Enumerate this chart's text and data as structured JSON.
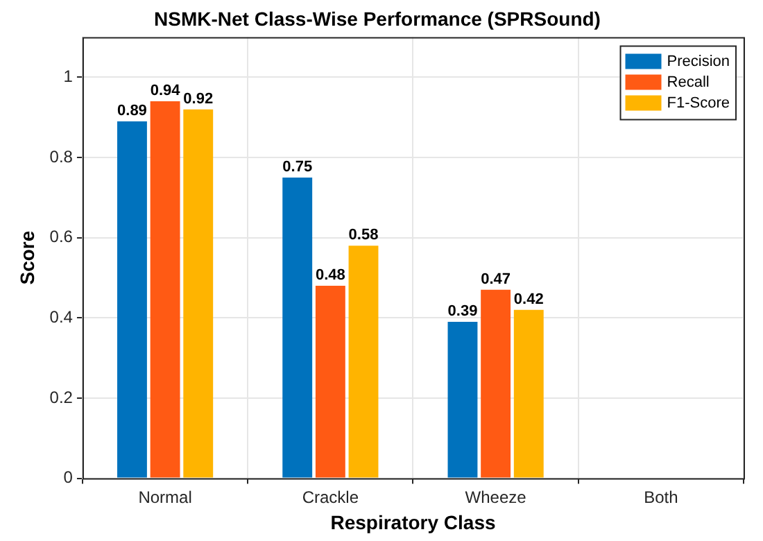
{
  "chart_data": {
    "type": "bar",
    "title": "NSMK-Net Class-Wise Performance (SPRSound)",
    "xlabel": "Respiratory Class",
    "ylabel": "Score",
    "categories": [
      "Normal",
      "Crackle",
      "Wheeze",
      "Both"
    ],
    "series": [
      {
        "name": "Precision",
        "color": "#0072bd",
        "values": [
          0.89,
          0.75,
          0.39,
          null
        ]
      },
      {
        "name": "Recall",
        "color": "#ff5a14",
        "values": [
          0.94,
          0.48,
          0.47,
          null
        ]
      },
      {
        "name": "F1-Score",
        "color": "#ffb400",
        "values": [
          0.92,
          0.58,
          0.42,
          null
        ]
      }
    ],
    "ylim": [
      0,
      1.1
    ],
    "yticks": [
      0,
      0.2,
      0.4,
      0.6,
      0.8,
      1
    ],
    "grid": true,
    "legend": "top right",
    "data_labels": true
  }
}
